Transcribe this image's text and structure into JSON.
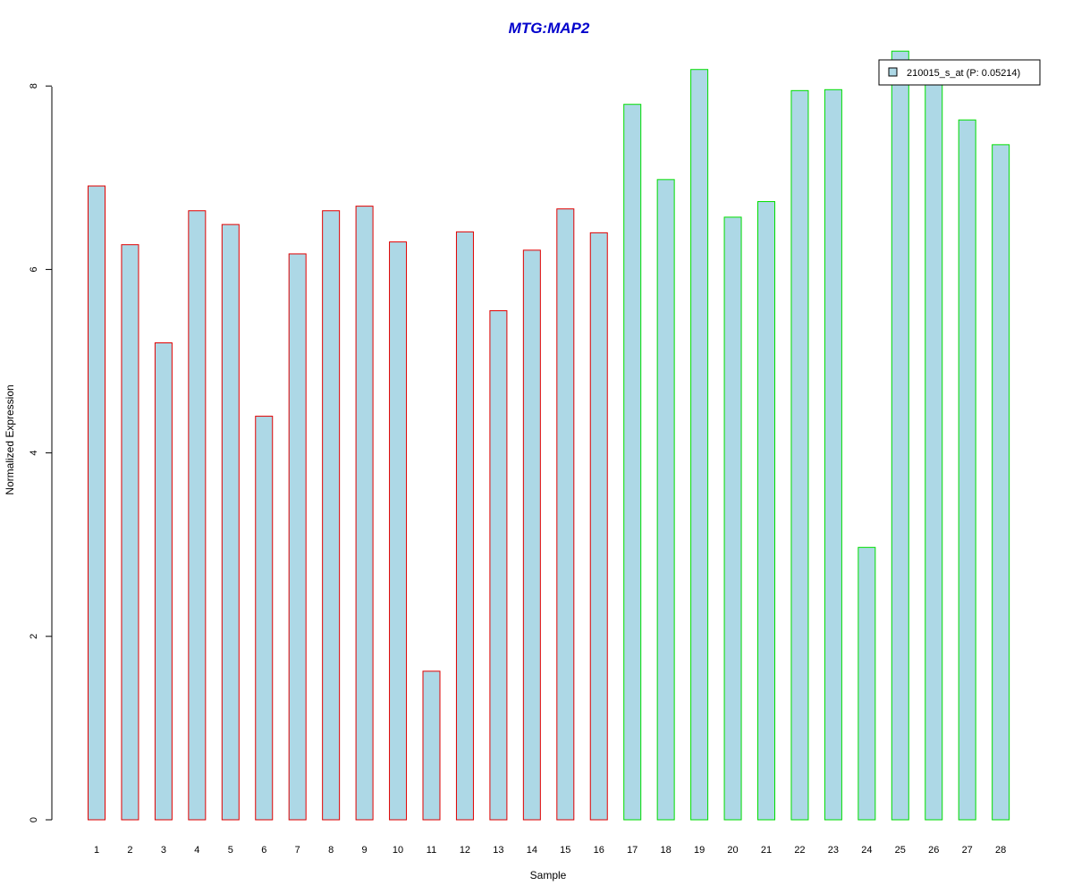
{
  "chart_data": {
    "type": "bar",
    "title": "MTG:MAP2",
    "xlabel": "Sample",
    "ylabel": "Normalized Expression",
    "categories": [
      "1",
      "2",
      "3",
      "4",
      "5",
      "6",
      "7",
      "8",
      "9",
      "10",
      "11",
      "12",
      "13",
      "14",
      "15",
      "16",
      "17",
      "18",
      "19",
      "20",
      "21",
      "22",
      "23",
      "24",
      "25",
      "26",
      "27",
      "28"
    ],
    "series": [
      {
        "name": "210015_s_at (P: 0.05214)",
        "values": [
          6.91,
          6.27,
          5.2,
          6.64,
          6.49,
          4.4,
          6.17,
          6.64,
          6.69,
          6.3,
          1.62,
          6.41,
          5.55,
          6.21,
          6.66,
          6.4,
          7.8,
          6.98,
          8.18,
          6.57,
          6.74,
          7.95,
          7.96,
          2.97,
          8.38,
          8.05,
          7.63,
          7.36
        ]
      }
    ],
    "group_border_colors": [
      "#e00000",
      "#e00000",
      "#e00000",
      "#e00000",
      "#e00000",
      "#e00000",
      "#e00000",
      "#e00000",
      "#e00000",
      "#e00000",
      "#e00000",
      "#e00000",
      "#e00000",
      "#e00000",
      "#e00000",
      "#e00000",
      "#00dd00",
      "#00dd00",
      "#00dd00",
      "#00dd00",
      "#00dd00",
      "#00dd00",
      "#00dd00",
      "#00dd00",
      "#00dd00",
      "#00dd00",
      "#00dd00",
      "#00dd00"
    ],
    "bar_fill": "#add8e6",
    "title_color": "#0000cc",
    "ylim": [
      0,
      8.4
    ],
    "yticks": [
      0,
      2,
      4,
      6,
      8
    ],
    "grid": false,
    "legend_position": "top-right"
  }
}
